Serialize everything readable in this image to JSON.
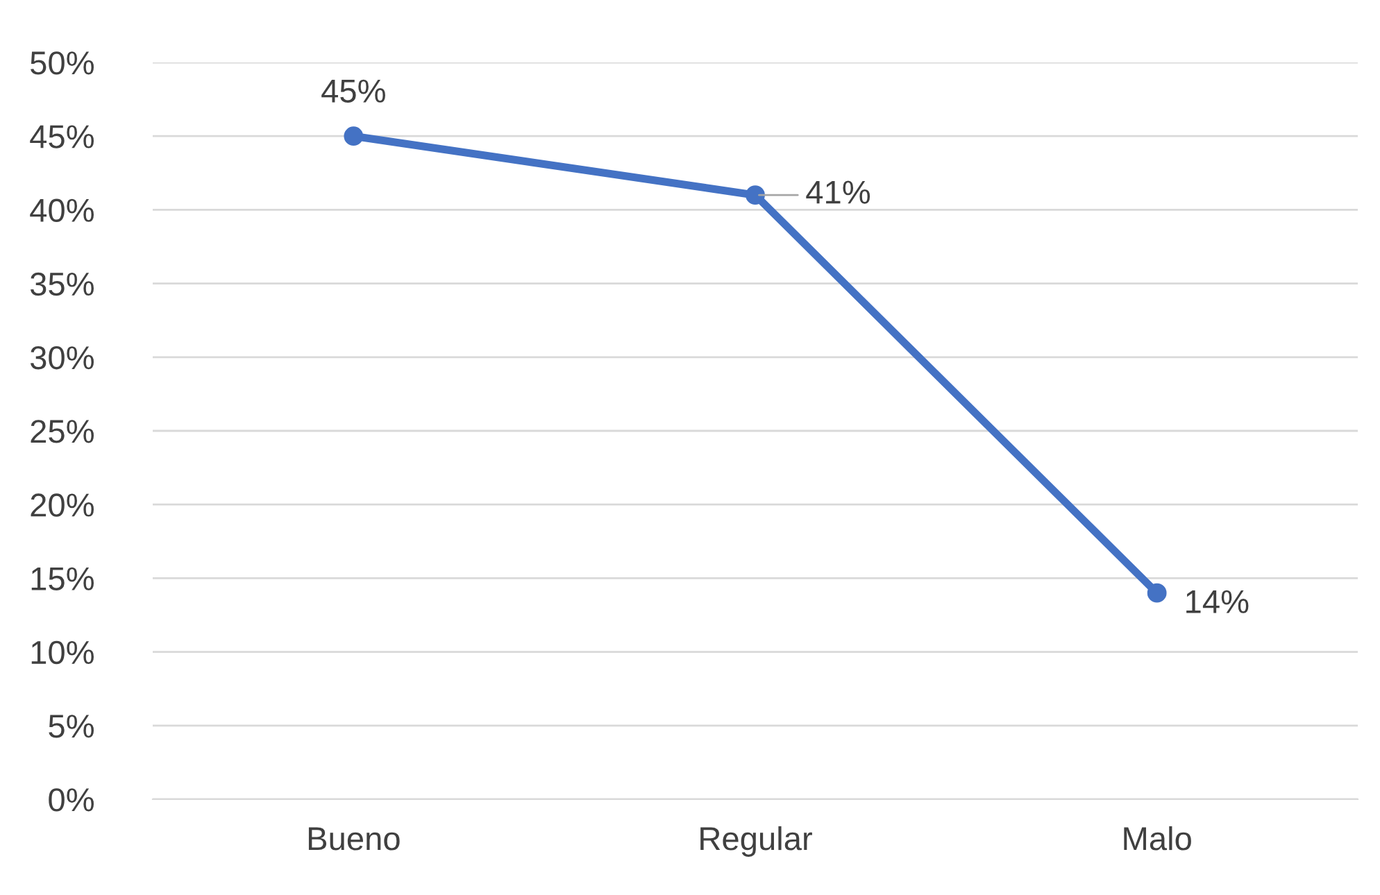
{
  "chart_data": {
    "type": "line",
    "categories": [
      "Bueno",
      "Regular",
      "Malo"
    ],
    "series": [
      {
        "color": "#4472c4",
        "values": [
          45,
          41,
          14
        ],
        "value_labels": [
          "45%",
          "41%",
          "14%"
        ]
      }
    ],
    "ylim": [
      0,
      50
    ],
    "yticks": [
      {
        "value": 0,
        "label": "0%"
      },
      {
        "value": 5,
        "label": "5%"
      },
      {
        "value": 10,
        "label": "10%"
      },
      {
        "value": 15,
        "label": "15%"
      },
      {
        "value": 20,
        "label": "20%"
      },
      {
        "value": 25,
        "label": "25%"
      },
      {
        "value": 30,
        "label": "30%"
      },
      {
        "value": 35,
        "label": "35%"
      },
      {
        "value": 40,
        "label": "40%"
      },
      {
        "value": 45,
        "label": "45%"
      },
      {
        "value": 50,
        "label": "50%"
      }
    ],
    "grid": "y",
    "marker": "circle",
    "line_style": "solid",
    "legend": false
  }
}
